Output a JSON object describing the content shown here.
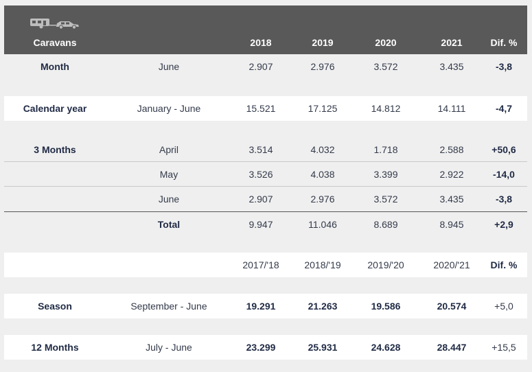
{
  "header": {
    "icon": "caravan-car-icon",
    "label": "Caravans",
    "years": [
      "2018",
      "2019",
      "2020",
      "2021"
    ],
    "dif": "Dif. %"
  },
  "month_row": {
    "label": "Month",
    "period": "June",
    "values": [
      "2.907",
      "2.976",
      "3.572",
      "3.435"
    ],
    "dif": "-3,8"
  },
  "calendar_row": {
    "label": "Calendar year",
    "period": "January - June",
    "values": [
      "15.521",
      "17.125",
      "14.812",
      "14.111"
    ],
    "dif": "-4,7"
  },
  "three_months": {
    "label": "3 Months",
    "rows": [
      {
        "period": "April",
        "values": [
          "3.514",
          "4.032",
          "1.718",
          "2.588"
        ],
        "dif": "+50,6"
      },
      {
        "period": "May",
        "values": [
          "3.526",
          "4.038",
          "3.399",
          "2.922"
        ],
        "dif": "-14,0"
      },
      {
        "period": "June",
        "values": [
          "2.907",
          "2.976",
          "3.572",
          "3.435"
        ],
        "dif": "-3,8"
      }
    ],
    "total": {
      "period": "Total",
      "values": [
        "9.947",
        "11.046",
        "8.689",
        "8.945"
      ],
      "dif": "+2,9"
    }
  },
  "season_header": {
    "years": [
      "2017/'18",
      "2018/'19",
      "2019/'20",
      "2020/'21"
    ],
    "dif": "Dif. %"
  },
  "season_row": {
    "label": "Season",
    "period": "September - June",
    "values": [
      "19.291",
      "21.263",
      "19.586",
      "20.574"
    ],
    "dif": "+5,0"
  },
  "twelve_months_row": {
    "label": "12 Months",
    "period": "July - June",
    "values": [
      "23.299",
      "25.931",
      "24.628",
      "28.447"
    ],
    "dif": "+15,5"
  }
}
